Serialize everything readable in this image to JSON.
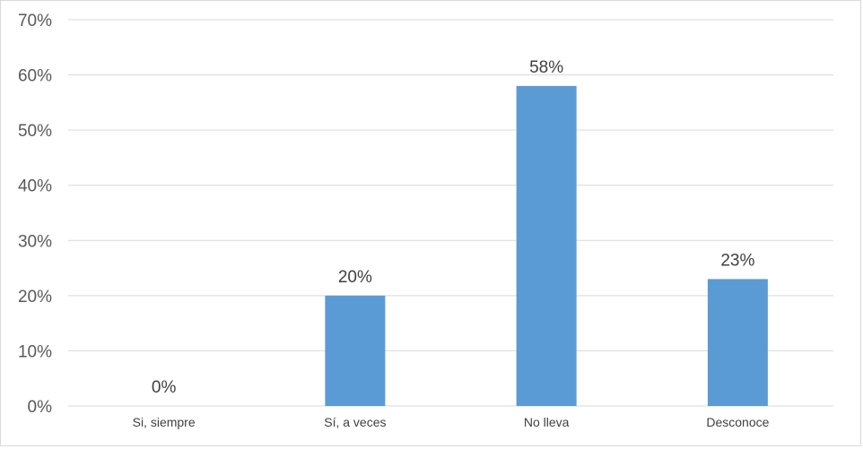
{
  "chart_data": {
    "type": "bar",
    "categories": [
      "Si, siempre",
      "Sí, a veces",
      "No lleva",
      "Desconoce"
    ],
    "values": [
      0,
      20,
      58,
      23
    ],
    "data_labels": [
      "0%",
      "20%",
      "58%",
      "23%"
    ],
    "value_unit": "%",
    "ylim": [
      0,
      70
    ],
    "yticks": [
      0,
      10,
      20,
      30,
      40,
      50,
      60,
      70
    ],
    "ytick_labels": [
      "0%",
      "10%",
      "20%",
      "30%",
      "40%",
      "50%",
      "60%",
      "70%"
    ],
    "grid": true,
    "bar_color": "#5b9bd5",
    "gridline_color": "#d9d9d9"
  }
}
